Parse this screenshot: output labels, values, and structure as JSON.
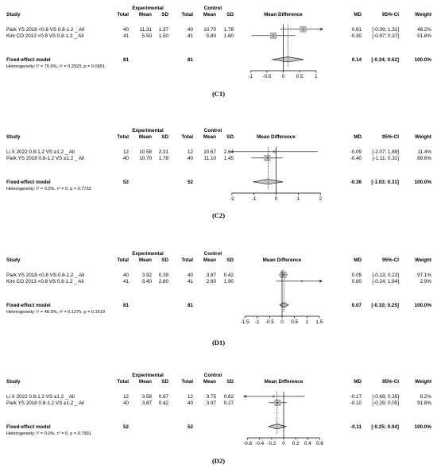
{
  "chart_data": [
    {
      "type": "forest",
      "caption": "(C1)",
      "headers": {
        "study": "Study",
        "experimental": "Experimental",
        "control": "Control",
        "total": "Total",
        "mean": "Mean",
        "sd": "SD",
        "plot": "Mean Difference",
        "md": "MD",
        "ci": "95%-CI",
        "weight": "Weight"
      },
      "studies": [
        {
          "name": "Park YS  2018 <0.8 VS 0.8-1.2 _ All",
          "e_total": "40",
          "e_mean": "11.31",
          "e_sd": "1.37",
          "c_total": "40",
          "c_mean": "10.70",
          "c_sd": "1.78",
          "md_text": "0.61",
          "ci_text": "[-0.09; 1.31]",
          "weight_text": "48.2%",
          "md": 0.61,
          "lower": -0.09,
          "upper": 1.31,
          "weight": 48.2
        },
        {
          "name": "Kim CO  2013 <0.8 VS 0.8-1.2 _ All",
          "e_total": "41",
          "e_mean": "5.50",
          "e_sd": "1.50",
          "c_total": "41",
          "c_mean": "5.80",
          "c_sd": "1.60",
          "md_text": "-0.30",
          "ci_text": "[-0.97; 0.37]",
          "weight_text": "51.8%",
          "md": -0.3,
          "lower": -0.97,
          "upper": 0.37,
          "weight": 51.8
        }
      ],
      "pooled": {
        "label": "Fixed-effect model",
        "e_total": "81",
        "c_total": "81",
        "md_text": "0.14",
        "ci_text": "[-0.34; 0.62]",
        "weight_text": "100.0%",
        "md": 0.14,
        "lower": -0.34,
        "upper": 0.62
      },
      "heterogeneity": "Heterogeneity: I² = 70.6%, τ² = 0.2923, p = 0.0651",
      "axis": {
        "min": -1.2,
        "max": 1.2,
        "ticks": [
          -1,
          -0.5,
          0,
          0.5,
          1
        ],
        "tick_labels": [
          "-1",
          "-0.5",
          "0",
          "0.5",
          "1"
        ]
      }
    },
    {
      "type": "forest",
      "caption": "(C2)",
      "headers": {
        "study": "Study",
        "experimental": "Experimental",
        "control": "Control",
        "total": "Total",
        "mean": "Mean",
        "sd": "SD",
        "plot": "Mean Difference",
        "md": "MD",
        "ci": "95%-CI",
        "weight": "Weight"
      },
      "studies": [
        {
          "name": "Li X 2022 0.8-1.2 VS ≥1.2 _ All",
          "e_total": "12",
          "e_mean": "10.58",
          "e_sd": "2.31",
          "c_total": "12",
          "c_mean": "10.67",
          "c_sd": "2.64",
          "md_text": "-0.09",
          "ci_text": "[-2.07; 1.89]",
          "weight_text": "11.4%",
          "md": -0.09,
          "lower": -2.07,
          "upper": 1.89,
          "weight": 11.4
        },
        {
          "name": "Park YS  2018 0.8-1.2 VS ≥1.2 _ All",
          "e_total": "40",
          "e_mean": "10.70",
          "e_sd": "1.78",
          "c_total": "40",
          "c_mean": "11.10",
          "c_sd": "1.45",
          "md_text": "-0.40",
          "ci_text": "[-1.11; 0.31]",
          "weight_text": "88.6%",
          "md": -0.4,
          "lower": -1.11,
          "upper": 0.31,
          "weight": 88.6
        }
      ],
      "pooled": {
        "label": "Fixed-effect model",
        "e_total": "52",
        "c_total": "52",
        "md_text": "-0.36",
        "ci_text": "[-1.03; 0.31]",
        "weight_text": "100.0%",
        "md": -0.36,
        "lower": -1.03,
        "upper": 0.31
      },
      "heterogeneity": "Heterogeneity: I² = 0.0%, τ² = 0, p = 0.7732",
      "axis": {
        "min": -2.1,
        "max": 2.1,
        "ticks": [
          -2,
          -1,
          0,
          1,
          2
        ],
        "tick_labels": [
          "-2",
          "-1",
          "0",
          "1",
          "2"
        ]
      }
    },
    {
      "type": "forest",
      "caption": "(D1)",
      "headers": {
        "study": "Study",
        "experimental": "Experimental",
        "control": "Control",
        "total": "Total",
        "mean": "Mean",
        "sd": "SD",
        "plot": "Mean Difference",
        "md": "MD",
        "ci": "95%-CI",
        "weight": "Weight"
      },
      "studies": [
        {
          "name": "Park YS  2018 <0.8 VS 0.8-1.2 _ All",
          "e_total": "40",
          "e_mean": "3.92",
          "e_sd": "0.39",
          "c_total": "40",
          "c_mean": "3.87",
          "c_sd": "0.42",
          "md_text": "0.05",
          "ci_text": "[-0.13; 0.23]",
          "weight_text": "97.1%",
          "md": 0.05,
          "lower": -0.13,
          "upper": 0.23,
          "weight": 97.1
        },
        {
          "name": "Kim CO  2013 <0.8 VS 0.8-1.2 _ All",
          "e_total": "41",
          "e_mean": "3.40",
          "e_sd": "2.80",
          "c_total": "41",
          "c_mean": "2.60",
          "c_sd": "1.90",
          "md_text": "0.80",
          "ci_text": "[-0.24; 1.84]",
          "weight_text": "2.9%",
          "md": 0.8,
          "lower": -0.24,
          "upper": 1.84,
          "weight": 2.9
        }
      ],
      "pooled": {
        "label": "Fixed-effect model",
        "e_total": "81",
        "c_total": "81",
        "md_text": "0.07",
        "ci_text": "[-0.10; 0.25]",
        "weight_text": "100.0%",
        "md": 0.07,
        "lower": -0.1,
        "upper": 0.25
      },
      "heterogeneity": "Heterogeneity: I² = 48.9%, τ² = 0.1375, p = 0.1619",
      "axis": {
        "min": -1.6,
        "max": 1.6,
        "ticks": [
          -1.5,
          -1,
          -0.5,
          0,
          0.5,
          1,
          1.5
        ],
        "tick_labels": [
          "-1.5",
          "-1",
          "-0.5",
          "0",
          "0.5",
          "1",
          "1.5"
        ]
      }
    },
    {
      "type": "forest",
      "caption": "(D2)",
      "headers": {
        "study": "Study",
        "experimental": "Experimental",
        "control": "Control",
        "total": "Total",
        "mean": "Mean",
        "sd": "SD",
        "plot": "Mean Difference",
        "md": "MD",
        "ci": "95%-CI",
        "weight": "Weight"
      },
      "studies": [
        {
          "name": "Li X 2022 0.8-1.2 VS ≥1.2 _ All",
          "e_total": "12",
          "e_mean": "3.58",
          "e_sd": "0.67",
          "c_total": "12",
          "c_mean": "3.75",
          "c_sd": "0.62",
          "md_text": "-0.17",
          "ci_text": "[-0.69; 0.35]",
          "weight_text": "8.2%",
          "md": -0.17,
          "lower": -0.69,
          "upper": 0.35,
          "weight": 8.2
        },
        {
          "name": "Park YS  2018 0.8-1.2 VS ≥1.2 _ All",
          "e_total": "40",
          "e_mean": "3.87",
          "e_sd": "0.42",
          "c_total": "40",
          "c_mean": "3.97",
          "c_sd": "0.27",
          "md_text": "-0.10",
          "ci_text": "[-0.25; 0.05]",
          "weight_text": "91.8%",
          "md": -0.1,
          "lower": -0.25,
          "upper": 0.05,
          "weight": 91.8
        }
      ],
      "pooled": {
        "label": "Fixed-effect model",
        "e_total": "52",
        "c_total": "52",
        "md_text": "-0.11",
        "ci_text": "[-0.25; 0.04]",
        "weight_text": "100.0%",
        "md": -0.11,
        "lower": -0.25,
        "upper": 0.04
      },
      "heterogeneity": "Heterogeneity: I² = 0.0%, τ² = 0, p = 0.7991",
      "axis": {
        "min": -0.66,
        "max": 0.66,
        "ticks": [
          -0.6,
          -0.4,
          -0.2,
          0,
          0.2,
          0.4,
          0.6
        ],
        "tick_labels": [
          "-0.6",
          "-0.4",
          "-0.2",
          "0",
          "0.2",
          "0.4",
          "0.6"
        ]
      }
    }
  ]
}
